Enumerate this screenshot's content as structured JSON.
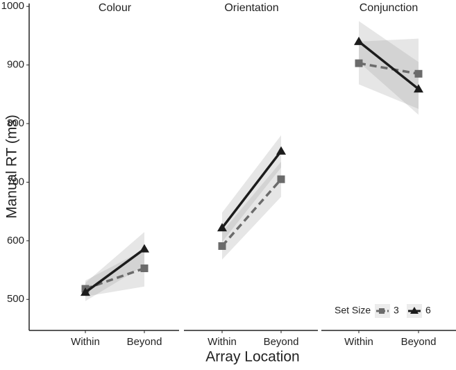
{
  "chart_data": {
    "type": "line",
    "y_label": "Manual RT (ms)",
    "x_label": "Array Location",
    "ylim": [
      447,
      1005
    ],
    "yticks": [
      500,
      600,
      700,
      800,
      900,
      1000
    ],
    "legend_title": "Set Size",
    "legend": "bottom-right",
    "panels": [
      {
        "title": "Colour",
        "categories": [
          "Within",
          "Beyond"
        ],
        "series": [
          {
            "name": "3",
            "color": "#6b6b6b",
            "line_style": "dashed",
            "marker": "square",
            "values": [
              518,
              553
            ],
            "lower": [
              505,
              522
            ],
            "upper": [
              532,
              585
            ]
          },
          {
            "name": "6",
            "color": "#1c1c1c",
            "line_style": "solid",
            "marker": "triangle",
            "values": [
              512,
              586
            ],
            "lower": [
              497,
              558
            ],
            "upper": [
              528,
              615
            ]
          }
        ]
      },
      {
        "title": "Orientation",
        "categories": [
          "Within",
          "Beyond"
        ],
        "series": [
          {
            "name": "3",
            "color": "#6b6b6b",
            "line_style": "dashed",
            "marker": "square",
            "values": [
              591,
              705
            ],
            "lower": [
              568,
              675
            ],
            "upper": [
              615,
              735
            ]
          },
          {
            "name": "6",
            "color": "#1c1c1c",
            "line_style": "solid",
            "marker": "triangle",
            "values": [
              622,
              753
            ],
            "lower": [
              598,
              725
            ],
            "upper": [
              648,
              780
            ]
          }
        ]
      },
      {
        "title": "Conjunction",
        "categories": [
          "Within",
          "Beyond"
        ],
        "series": [
          {
            "name": "3",
            "color": "#6b6b6b",
            "line_style": "dashed",
            "marker": "square",
            "values": [
              903,
              885
            ],
            "lower": [
              867,
              825
            ],
            "upper": [
              940,
              945
            ]
          },
          {
            "name": "6",
            "color": "#1c1c1c",
            "line_style": "solid",
            "marker": "triangle",
            "values": [
              940,
              859
            ],
            "lower": [
              905,
              815
            ],
            "upper": [
              975,
              905
            ]
          }
        ]
      }
    ]
  }
}
